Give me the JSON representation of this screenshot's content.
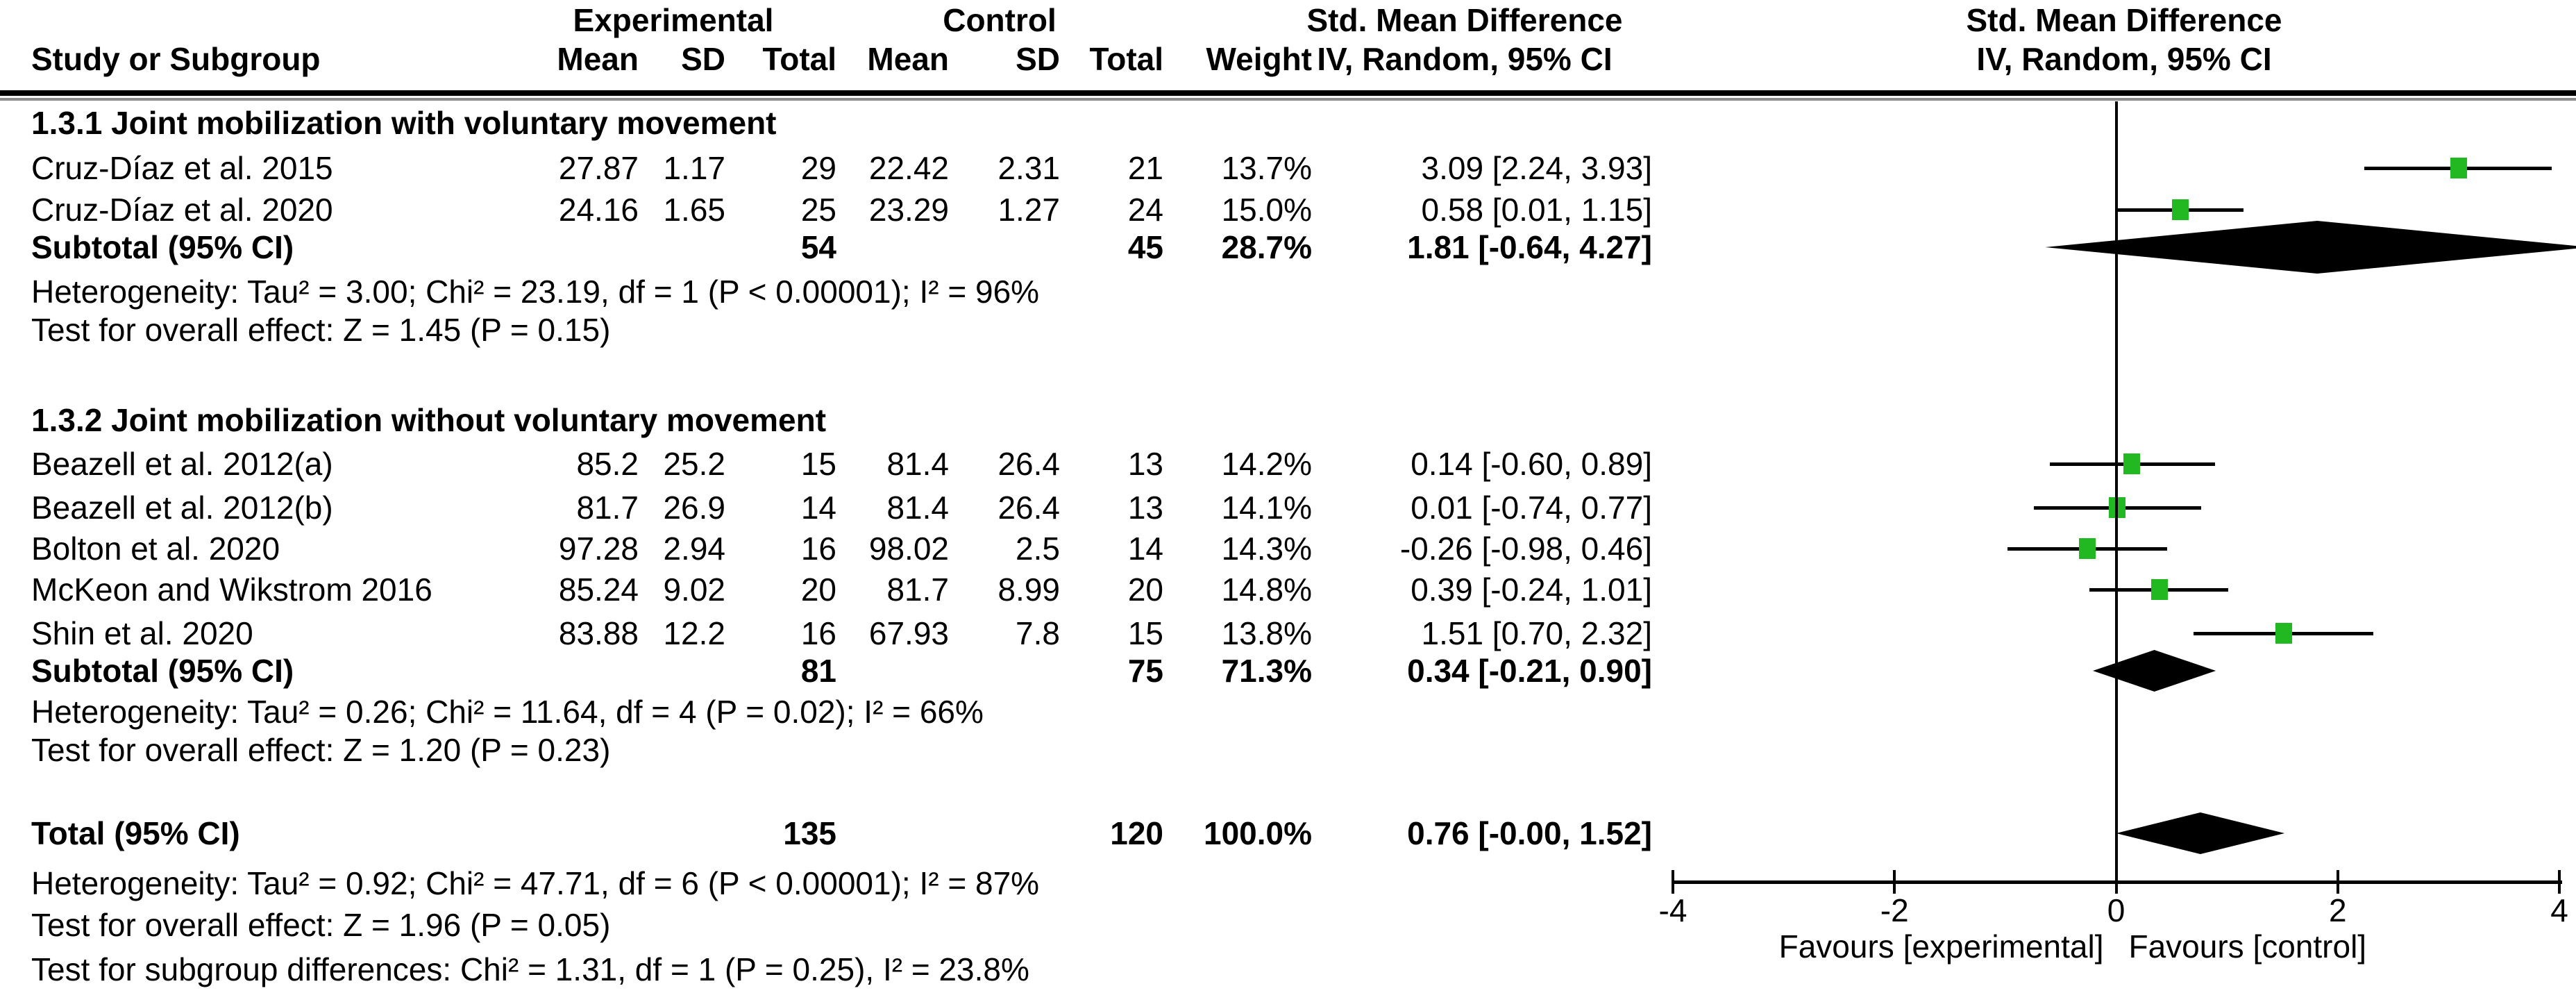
{
  "chart_data": {
    "type": "forest",
    "effect_measure": "Std. Mean Difference",
    "model": "IV, Random, 95% CI",
    "colors": {
      "marker": "#22b822",
      "line": "#000000",
      "diamond": "#000000"
    },
    "axis": {
      "min": -4,
      "max": 4,
      "ticks": [
        -4,
        -2,
        0,
        2,
        4
      ],
      "favours_left": "Favours [experimental]",
      "favours_right": "Favours [control]"
    },
    "header": {
      "study": "Study or Subgroup",
      "group1": "Experimental",
      "group2": "Control",
      "mean": "Mean",
      "sd": "SD",
      "total": "Total",
      "weight": "Weight",
      "smd": "Std. Mean Difference",
      "ci_method": "IV, Random, 95% CI"
    },
    "subgroups": [
      {
        "title": "1.3.1 Joint mobilization with voluntary movement",
        "studies": [
          {
            "study": "Cruz-Díaz et al. 2015",
            "mean1": "27.87",
            "sd1": "1.17",
            "total1": "29",
            "mean2": "22.42",
            "sd2": "2.31",
            "total2": "21",
            "weight": "13.7%",
            "ci": "3.09 [2.24, 3.93]",
            "est": 3.09,
            "lo": 2.24,
            "hi": 3.93
          },
          {
            "study": "Cruz-Díaz et al. 2020",
            "mean1": "24.16",
            "sd1": "1.65",
            "total1": "25",
            "mean2": "23.29",
            "sd2": "1.27",
            "total2": "24",
            "weight": "15.0%",
            "ci": "0.58 [0.01, 1.15]",
            "est": 0.58,
            "lo": 0.01,
            "hi": 1.15
          }
        ],
        "subtotal": {
          "label": "Subtotal (95% CI)",
          "total1": "54",
          "total2": "45",
          "weight": "28.7%",
          "ci": "1.81 [-0.64, 4.27]",
          "est": 1.81,
          "lo": -0.64,
          "hi": 4.27
        },
        "heterogeneity": "Heterogeneity: Tau² = 3.00; Chi² = 23.19, df = 1 (P < 0.00001); I² = 96%",
        "overall_effect": "Test for overall effect: Z = 1.45 (P = 0.15)"
      },
      {
        "title": "1.3.2 Joint mobilization without voluntary movement",
        "studies": [
          {
            "study": "Beazell et al. 2012(a)",
            "mean1": "85.2",
            "sd1": "25.2",
            "total1": "15",
            "mean2": "81.4",
            "sd2": "26.4",
            "total2": "13",
            "weight": "14.2%",
            "ci": "0.14 [-0.60, 0.89]",
            "est": 0.14,
            "lo": -0.6,
            "hi": 0.89
          },
          {
            "study": "Beazell et al. 2012(b)",
            "mean1": "81.7",
            "sd1": "26.9",
            "total1": "14",
            "mean2": "81.4",
            "sd2": "26.4",
            "total2": "13",
            "weight": "14.1%",
            "ci": "0.01 [-0.74, 0.77]",
            "est": 0.01,
            "lo": -0.74,
            "hi": 0.77
          },
          {
            "study": "Bolton et al. 2020",
            "mean1": "97.28",
            "sd1": "2.94",
            "total1": "16",
            "mean2": "98.02",
            "sd2": "2.5",
            "total2": "14",
            "weight": "14.3%",
            "ci": "-0.26 [-0.98, 0.46]",
            "est": -0.26,
            "lo": -0.98,
            "hi": 0.46
          },
          {
            "study": "McKeon and Wikstrom 2016",
            "mean1": "85.24",
            "sd1": "9.02",
            "total1": "20",
            "mean2": "81.7",
            "sd2": "8.99",
            "total2": "20",
            "weight": "14.8%",
            "ci": "0.39 [-0.24, 1.01]",
            "est": 0.39,
            "lo": -0.24,
            "hi": 1.01
          },
          {
            "study": "Shin et al. 2020",
            "mean1": "83.88",
            "sd1": "12.2",
            "total1": "16",
            "mean2": "67.93",
            "sd2": "7.8",
            "total2": "15",
            "weight": "13.8%",
            "ci": "1.51 [0.70, 2.32]",
            "est": 1.51,
            "lo": 0.7,
            "hi": 2.32
          }
        ],
        "subtotal": {
          "label": "Subtotal (95% CI)",
          "total1": "81",
          "total2": "75",
          "weight": "71.3%",
          "ci": "0.34 [-0.21, 0.90]",
          "est": 0.34,
          "lo": -0.21,
          "hi": 0.9
        },
        "heterogeneity": "Heterogeneity: Tau² = 0.26; Chi² = 11.64, df = 4 (P = 0.02); I² = 66%",
        "overall_effect": "Test for overall effect: Z = 1.20 (P = 0.23)"
      }
    ],
    "total": {
      "label": "Total (95% CI)",
      "total1": "135",
      "total2": "120",
      "weight": "100.0%",
      "ci": "0.76 [-0.00, 1.52]",
      "est": 0.76,
      "lo": -0.0,
      "hi": 1.52,
      "heterogeneity": "Heterogeneity: Tau² = 0.92; Chi² = 47.71, df = 6 (P < 0.00001); I² = 87%",
      "overall_effect": "Test for overall effect: Z = 1.96 (P = 0.05)",
      "subgroup_differences": "Test for subgroup differences: Chi² = 1.31, df = 1 (P = 0.25), I² = 23.8%"
    }
  }
}
